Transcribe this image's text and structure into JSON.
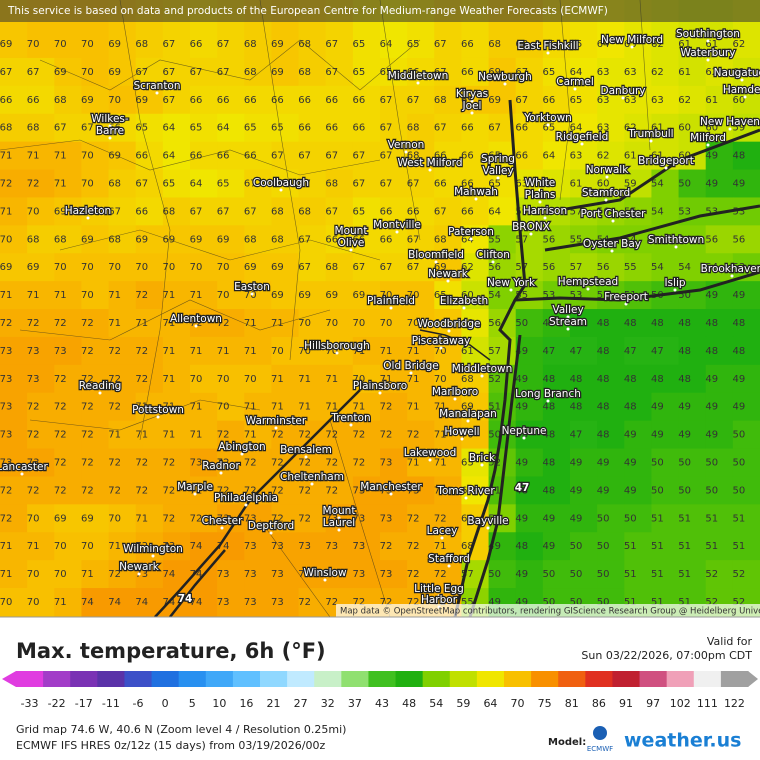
{
  "notice": "This service is based on data and products of the European Centre for Medium-range Weather Forecasts (ECMWF)",
  "attribution": "Map data © OpenStreetMap contributors, rendering GIScience Research Group @ Heidelberg University",
  "title": "Max. temperature, 6h (°F)",
  "valid_label": "Valid for",
  "valid_time": "Sun 03/22/2026, 07:00pm CDT",
  "legend": {
    "ticks": [
      -33,
      -22,
      -17,
      -11,
      -6,
      0,
      5,
      10,
      16,
      21,
      27,
      32,
      37,
      43,
      48,
      54,
      59,
      64,
      70,
      75,
      81,
      86,
      91,
      97,
      102,
      111,
      122
    ],
    "colors": [
      "#e03ce0",
      "#a23cc8",
      "#7a32b4",
      "#5a32a8",
      "#3c50c8",
      "#2070e0",
      "#2890f0",
      "#40a8f8",
      "#60c0ff",
      "#90d8ff",
      "#c0eaff",
      "#c8f0c8",
      "#90e070",
      "#40c020",
      "#20b010",
      "#80d000",
      "#c0e000",
      "#f0e600",
      "#f8c000",
      "#f89000",
      "#f06010",
      "#e03020",
      "#c02030",
      "#d05080",
      "#f0a0b8",
      "#f0f0f0",
      "#a0a0a0"
    ]
  },
  "grid": {
    "rows": [
      [
        69,
        70,
        70,
        70,
        69,
        68,
        67,
        66,
        67,
        68,
        69,
        68,
        67,
        65,
        64,
        65,
        67,
        66,
        68,
        68,
        66,
        65,
        64,
        63,
        62,
        61,
        61,
        62
      ],
      [
        67,
        67,
        69,
        70,
        69,
        67,
        67,
        67,
        67,
        68,
        69,
        68,
        67,
        65,
        65,
        66,
        67,
        66,
        69,
        67,
        65,
        64,
        63,
        63,
        62,
        61,
        62,
        61
      ],
      [
        66,
        66,
        68,
        69,
        70,
        69,
        67,
        66,
        66,
        66,
        66,
        66,
        66,
        66,
        67,
        67,
        68,
        69,
        69,
        67,
        66,
        65,
        63,
        63,
        63,
        62,
        61,
        60
      ],
      [
        68,
        68,
        67,
        67,
        66,
        65,
        64,
        65,
        64,
        65,
        65,
        66,
        66,
        66,
        67,
        68,
        67,
        66,
        67,
        66,
        65,
        64,
        63,
        62,
        61,
        60,
        60,
        59
      ],
      [
        71,
        71,
        71,
        70,
        69,
        66,
        64,
        66,
        66,
        66,
        67,
        67,
        67,
        67,
        67,
        68,
        66,
        66,
        65,
        66,
        64,
        63,
        62,
        61,
        61,
        60,
        49,
        48
      ],
      [
        72,
        72,
        71,
        70,
        68,
        67,
        65,
        64,
        65,
        67,
        66,
        67,
        68,
        67,
        67,
        67,
        66,
        66,
        65,
        63,
        62,
        61,
        60,
        59,
        54,
        50,
        49,
        49
      ],
      [
        71,
        70,
        69,
        68,
        67,
        66,
        68,
        67,
        67,
        67,
        68,
        68,
        67,
        65,
        66,
        66,
        67,
        66,
        64,
        59,
        58,
        57,
        56,
        55,
        54,
        53,
        53,
        53
      ],
      [
        70,
        68,
        68,
        69,
        68,
        69,
        69,
        69,
        69,
        68,
        68,
        67,
        66,
        66,
        66,
        67,
        68,
        64,
        55,
        57,
        56,
        55,
        54,
        54,
        54,
        54,
        56,
        56
      ],
      [
        69,
        69,
        70,
        70,
        70,
        70,
        70,
        70,
        70,
        69,
        69,
        67,
        68,
        67,
        67,
        67,
        69,
        62,
        56,
        57,
        56,
        57,
        56,
        55,
        54,
        54,
        54,
        53
      ],
      [
        71,
        71,
        71,
        70,
        71,
        72,
        71,
        71,
        70,
        70,
        69,
        69,
        69,
        69,
        70,
        70,
        65,
        60,
        54,
        55,
        53,
        53,
        52,
        51,
        50,
        50,
        49,
        49
      ],
      [
        72,
        72,
        72,
        72,
        71,
        71,
        71,
        72,
        72,
        71,
        71,
        70,
        70,
        70,
        70,
        70,
        69,
        63,
        56,
        50,
        49,
        48,
        48,
        48,
        48,
        48,
        48,
        48
      ],
      [
        73,
        73,
        73,
        72,
        72,
        72,
        71,
        71,
        71,
        71,
        70,
        70,
        70,
        71,
        71,
        71,
        70,
        61,
        57,
        49,
        47,
        47,
        48,
        47,
        47,
        48,
        48,
        48
      ],
      [
        73,
        73,
        72,
        72,
        72,
        72,
        71,
        70,
        70,
        70,
        71,
        71,
        71,
        70,
        71,
        71,
        70,
        68,
        52,
        49,
        48,
        48,
        48,
        48,
        48,
        48,
        49,
        49
      ],
      [
        73,
        72,
        72,
        72,
        72,
        71,
        71,
        71,
        70,
        71,
        71,
        71,
        71,
        71,
        72,
        71,
        71,
        69,
        51,
        49,
        48,
        48,
        48,
        48,
        49,
        49,
        49,
        49
      ],
      [
        73,
        72,
        72,
        72,
        71,
        71,
        71,
        71,
        72,
        71,
        72,
        72,
        72,
        72,
        72,
        72,
        71,
        70,
        50,
        48,
        48,
        47,
        48,
        49,
        49,
        49,
        49,
        50
      ],
      [
        73,
        73,
        72,
        72,
        72,
        72,
        72,
        73,
        72,
        72,
        72,
        72,
        72,
        72,
        73,
        71,
        71,
        63,
        52,
        49,
        48,
        49,
        49,
        49,
        50,
        50,
        50,
        50
      ],
      [
        72,
        72,
        72,
        72,
        72,
        72,
        72,
        72,
        72,
        72,
        72,
        72,
        72,
        73,
        73,
        73,
        72,
        64,
        51,
        48,
        48,
        49,
        49,
        49,
        50,
        50,
        50,
        50
      ],
      [
        72,
        70,
        69,
        69,
        70,
        71,
        72,
        72,
        73,
        73,
        72,
        72,
        73,
        73,
        73,
        72,
        72,
        68,
        54,
        49,
        49,
        49,
        50,
        50,
        51,
        51,
        51,
        51
      ],
      [
        71,
        71,
        70,
        70,
        71,
        72,
        73,
        74,
        74,
        73,
        73,
        73,
        73,
        73,
        72,
        72,
        71,
        68,
        49,
        48,
        49,
        50,
        50,
        51,
        51,
        51,
        51,
        51
      ],
      [
        71,
        70,
        70,
        71,
        72,
        73,
        74,
        74,
        73,
        73,
        73,
        73,
        73,
        73,
        73,
        72,
        72,
        57,
        50,
        49,
        50,
        50,
        50,
        51,
        51,
        51,
        52,
        52
      ],
      [
        70,
        70,
        71,
        74,
        74,
        74,
        74,
        74,
        73,
        73,
        73,
        72,
        72,
        72,
        72,
        72,
        72,
        55,
        49,
        49,
        50,
        50,
        50,
        51,
        51,
        51,
        52,
        52
      ]
    ]
  },
  "highlights": [
    47,
    74
  ],
  "cities": [
    "Scranton",
    "Wilkes-",
    "Barre",
    "Hazleton",
    "Middletown",
    "Newburgh",
    "East Fishkill",
    "New Milford",
    "Southington",
    "Waterbury",
    "Naugatuck",
    "Carmel",
    "Danbury",
    "Hamden",
    "Kiryas",
    "Joel",
    "Yorktown",
    "Ridgefield",
    "Trumbull",
    "New Haven",
    "Milford",
    "Vernon",
    "West Milford",
    "Spring",
    "Valley",
    "Norwalk",
    "Bridgeport",
    "Coolbaugh",
    "Mahwah",
    "White",
    "Plains",
    "Stamford",
    "Harrison",
    "Port Chester",
    "BRONX",
    "Paterson",
    "Montville",
    "Mount",
    "Olive",
    "Oyster Bay",
    "Smithtown",
    "Bloomfield",
    "Clifton",
    "Newark",
    "Brookhaven",
    "Hempstead",
    "Islip",
    "Easton",
    "New York",
    "Elizabeth",
    "Freeport",
    "Plainfield",
    "Allentown",
    "Woodbridge",
    "Valley",
    "Stream",
    "Piscataway",
    "Hillsborough",
    "Old Bridge",
    "Middletown",
    "Reading",
    "Plainsboro",
    "Marlboro",
    "Long Branch",
    "Pottstown",
    "Manalapan",
    "Trenton",
    "Warminster",
    "Neptune",
    "Howell",
    "Abington",
    "Bensalem",
    "Lakewood",
    "Radnor",
    "Brick",
    "Lancaster",
    "Cheltenham",
    "Manchester",
    "Marple",
    "Toms River",
    "Philadelphia",
    "Mount",
    "Laurel",
    "Chester",
    "Deptford",
    "Bayville",
    "Lacey",
    "Wilmington",
    "Stafford",
    "Newark",
    "Winslow",
    "Little Egg",
    "Harbor"
  ],
  "footer": {
    "grid_info": "Grid map 74.6 W, 40.6 N (Zoom level 4 / Resolution 0.25mi)",
    "run_info": "ECMWF IFS HRES 0z/12z (15 days) from 03/19/2026/00z",
    "model_label": "Model:",
    "model_name": "ECMWF",
    "brand": "weather.us"
  }
}
